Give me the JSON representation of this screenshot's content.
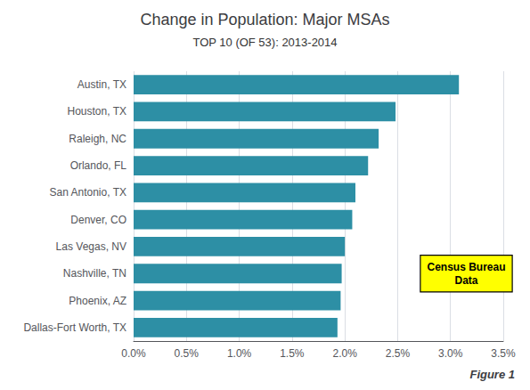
{
  "chart_data": {
    "type": "bar",
    "orientation": "horizontal",
    "title": "Change in Population: Major MSAs",
    "subtitle": "TOP 10 (OF 53): 2013-2014",
    "categories": [
      "Dallas-Fort Worth, TX",
      "Phoenix, AZ",
      "Nashville, TN",
      "Las Vegas, NV",
      "Denver, CO",
      "San Antonio, TX",
      "Orlando, FL",
      "Raleigh, NC",
      "Houston, TX",
      "Austin, TX"
    ],
    "values": [
      0.0193,
      0.0196,
      0.0197,
      0.02,
      0.0207,
      0.021,
      0.0222,
      0.0232,
      0.0248,
      0.0308
    ],
    "color": "#2d8fa5",
    "xlim": [
      0,
      0.035
    ],
    "xticks": [
      {
        "value": 0.0,
        "label": "0.0%"
      },
      {
        "value": 0.005,
        "label": "0.5%"
      },
      {
        "value": 0.01,
        "label": "1.0%"
      },
      {
        "value": 0.015,
        "label": "1.5%"
      },
      {
        "value": 0.02,
        "label": "2.0%"
      },
      {
        "value": 0.025,
        "label": "2.5%"
      },
      {
        "value": 0.03,
        "label": "3.0%"
      },
      {
        "value": 0.035,
        "label": "3.5%"
      }
    ],
    "grid": true,
    "annotations": [
      {
        "text": "Census Bureau\nData",
        "x": 0.0315,
        "y": "Nashville, TN",
        "color": "#ffff00"
      }
    ],
    "caption": "Figure 1"
  }
}
